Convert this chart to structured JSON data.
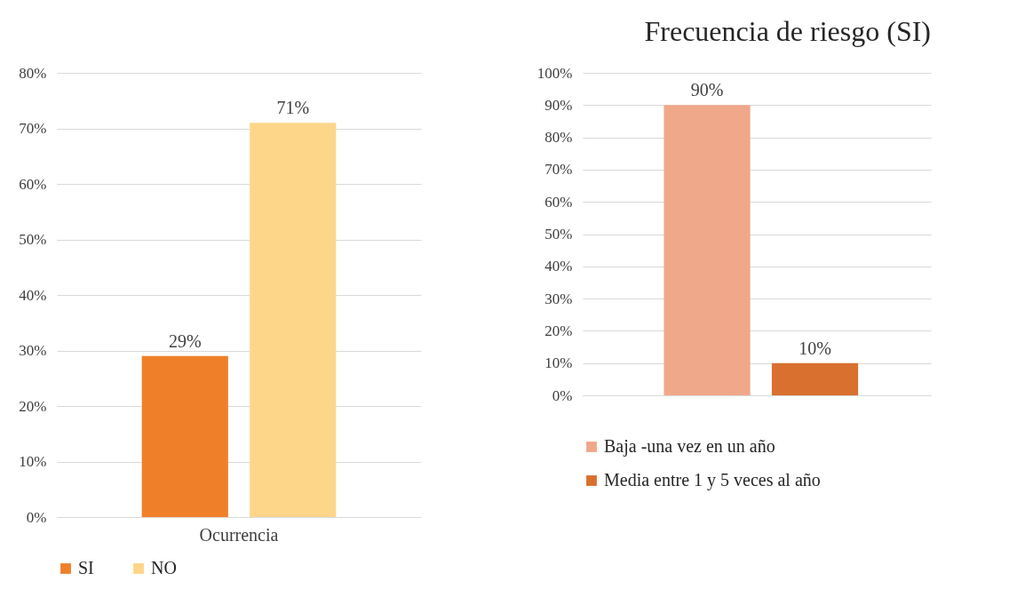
{
  "chart_data": [
    {
      "type": "bar",
      "categories": [
        "Ocurrencia"
      ],
      "series": [
        {
          "name": "SI",
          "color": "#f07f2a",
          "values": [
            29
          ],
          "value_labels": [
            "29%"
          ]
        },
        {
          "name": "NO",
          "color": "#fdd68a",
          "values": [
            71
          ],
          "value_labels": [
            "71%"
          ]
        }
      ],
      "ylim": [
        0,
        80
      ],
      "yticks": [
        {
          "value": 0,
          "label": "0%"
        },
        {
          "value": 10,
          "label": "10%"
        },
        {
          "value": 20,
          "label": "20%"
        },
        {
          "value": 30,
          "label": "30%"
        },
        {
          "value": 40,
          "label": "40%"
        },
        {
          "value": 50,
          "label": "50%"
        },
        {
          "value": 60,
          "label": "60%"
        },
        {
          "value": 70,
          "label": "70%"
        },
        {
          "value": 80,
          "label": "80%"
        }
      ],
      "grid": "y",
      "legend": "bottom"
    },
    {
      "type": "bar",
      "title": "Frecuencia de riesgo (SI)",
      "categories": [
        null
      ],
      "series": [
        {
          "name": "Baja -una vez en un año",
          "color": "#f0a88a",
          "values": [
            90
          ],
          "value_labels": [
            "90%"
          ]
        },
        {
          "name": "Media entre 1 y 5 veces al año",
          "color": "#d97030",
          "values": [
            10
          ],
          "value_labels": [
            "10%"
          ]
        }
      ],
      "ylim": [
        0,
        100
      ],
      "yticks": [
        {
          "value": 0,
          "label": "0%"
        },
        {
          "value": 10,
          "label": "10%"
        },
        {
          "value": 20,
          "label": "20%"
        },
        {
          "value": 30,
          "label": "30%"
        },
        {
          "value": 40,
          "label": "40%"
        },
        {
          "value": 50,
          "label": "50%"
        },
        {
          "value": 60,
          "label": "60%"
        },
        {
          "value": 70,
          "label": "70%"
        },
        {
          "value": 80,
          "label": "80%"
        },
        {
          "value": 90,
          "label": "90%"
        },
        {
          "value": 100,
          "label": "100%"
        }
      ],
      "grid": "y",
      "legend": "bottom"
    }
  ]
}
